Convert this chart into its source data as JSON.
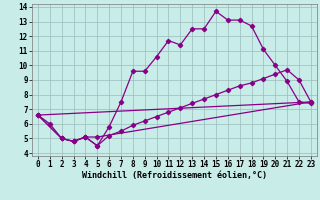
{
  "xlabel": "Windchill (Refroidissement éolien,°C)",
  "bg_color": "#c8ece8",
  "line_color": "#880088",
  "grid_color": "#99bbbb",
  "xlim": [
    -0.5,
    23.5
  ],
  "ylim": [
    3.8,
    14.2
  ],
  "xticks": [
    0,
    1,
    2,
    3,
    4,
    5,
    6,
    7,
    8,
    9,
    10,
    11,
    12,
    13,
    14,
    15,
    16,
    17,
    18,
    19,
    20,
    21,
    22,
    23
  ],
  "yticks": [
    4,
    5,
    6,
    7,
    8,
    9,
    10,
    11,
    12,
    13,
    14
  ],
  "line1_x": [
    0,
    1,
    2,
    3,
    4,
    5,
    6,
    7,
    8,
    9,
    10,
    11,
    12,
    13,
    14,
    15,
    16,
    17,
    18,
    19,
    20,
    21,
    22,
    23
  ],
  "line1_y": [
    6.6,
    6.0,
    5.0,
    4.8,
    5.1,
    4.5,
    5.8,
    7.5,
    9.6,
    9.6,
    10.6,
    11.7,
    11.4,
    12.5,
    12.5,
    13.7,
    13.1,
    13.1,
    12.7,
    11.1,
    10.0,
    8.9,
    7.5,
    7.4
  ],
  "line2_x": [
    0,
    2,
    3,
    4,
    5,
    23
  ],
  "line2_y": [
    6.6,
    5.0,
    4.8,
    5.1,
    5.1,
    7.5
  ],
  "line3_x": [
    0,
    2,
    3,
    4,
    5,
    6,
    7,
    8,
    9,
    10,
    11,
    12,
    13,
    14,
    15,
    16,
    17,
    18,
    19,
    20,
    21,
    22,
    23
  ],
  "line3_y": [
    6.6,
    5.0,
    4.8,
    5.1,
    4.5,
    5.2,
    5.5,
    5.9,
    6.2,
    6.5,
    6.8,
    7.1,
    7.4,
    7.7,
    8.0,
    8.3,
    8.6,
    8.8,
    9.1,
    9.4,
    9.7,
    9.0,
    7.5
  ],
  "line4_x": [
    0,
    23
  ],
  "line4_y": [
    6.6,
    7.5
  ],
  "label_fontsize": 6.0,
  "tick_fontsize": 5.5
}
